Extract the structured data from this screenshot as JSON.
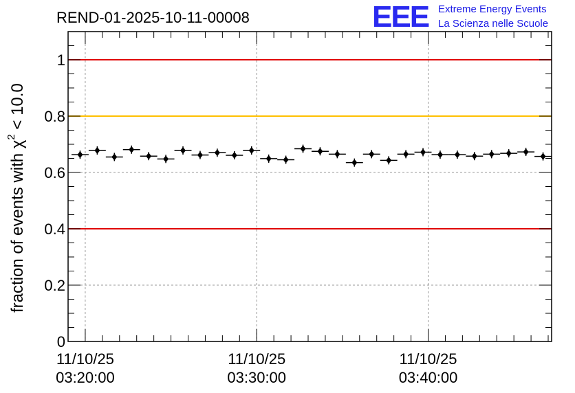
{
  "chart_data": {
    "type": "scatter",
    "title": "REND-01-2025-10-11-00008",
    "ylabel_main": "fraction of events with χ",
    "ylabel_sup": "2",
    "ylabel_tail": " < 10.0",
    "xlabel": "",
    "ylim": [
      0,
      1.1
    ],
    "xlim_minutes": [
      -1,
      27.2
    ],
    "y_ticks": [
      0,
      0.2,
      0.4,
      0.6,
      0.8,
      1
    ],
    "y_tick_labels": [
      "0",
      "0.2",
      "0.4",
      "0.6",
      "0.8",
      "1"
    ],
    "x_ticks_minutes": [
      0,
      10,
      20
    ],
    "x_tick_labels": [
      {
        "date": "11/10/25",
        "time": "03:20:00"
      },
      {
        "date": "11/10/25",
        "time": "03:30:00"
      },
      {
        "date": "11/10/25",
        "time": "03:40:00"
      }
    ],
    "grid": true,
    "reference_lines": [
      {
        "y": 1.0,
        "color": "#e00000"
      },
      {
        "y": 0.8,
        "color": "#ffc000"
      },
      {
        "y": 0.4,
        "color": "#e00000"
      }
    ],
    "bin_width_minutes": 1,
    "series": [
      {
        "name": "fraction",
        "x_minutes": [
          -0.3,
          0.7,
          1.7,
          2.7,
          3.7,
          4.7,
          5.7,
          6.7,
          7.7,
          8.7,
          9.7,
          10.7,
          11.7,
          12.7,
          13.7,
          14.7,
          15.7,
          16.7,
          17.7,
          18.7,
          19.7,
          20.7,
          21.7,
          22.7,
          23.7,
          24.7,
          25.7,
          26.7
        ],
        "values": [
          0.663,
          0.678,
          0.655,
          0.681,
          0.658,
          0.648,
          0.678,
          0.662,
          0.67,
          0.661,
          0.678,
          0.649,
          0.645,
          0.684,
          0.675,
          0.665,
          0.635,
          0.665,
          0.643,
          0.665,
          0.672,
          0.663,
          0.663,
          0.658,
          0.665,
          0.668,
          0.673,
          0.657
        ]
      }
    ]
  },
  "logo": {
    "mark": "EEE",
    "line1": "Extreme Energy Events",
    "line2": "La Scienza nelle Scuole"
  }
}
